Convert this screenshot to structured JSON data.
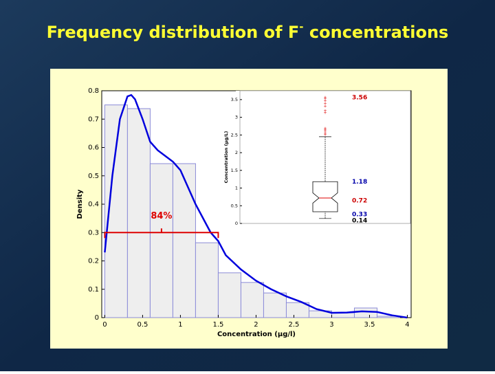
{
  "title": {
    "main": "Frequency distribution of F",
    "sup": "-",
    "rest": "concentrations"
  },
  "chart_data": [
    {
      "type": "histogram",
      "xlabel": "Concentration (µg/l)",
      "ylabel": "Density",
      "bins": [
        0,
        0.3,
        0.6,
        0.9,
        1.2,
        1.5,
        1.8,
        2.1,
        2.4,
        2.7,
        3.0,
        3.3,
        3.6,
        3.9
      ],
      "values": [
        0.75,
        0.737,
        0.543,
        0.543,
        0.264,
        0.158,
        0.124,
        0.087,
        0.053,
        0.024,
        0.017,
        0.034,
        0.005
      ],
      "color": "#eeeeee",
      "edge_color": "#8a8ad8",
      "density": {
        "color": "#0000dd",
        "x": [
          0,
          0.1,
          0.2,
          0.3,
          0.35,
          0.4,
          0.5,
          0.6,
          0.7,
          0.8,
          0.9,
          1.0,
          1.1,
          1.2,
          1.3,
          1.4,
          1.5,
          1.6,
          1.8,
          2.0,
          2.2,
          2.4,
          2.6,
          2.8,
          3.0,
          3.2,
          3.4,
          3.6,
          3.8,
          4.0
        ],
        "y": [
          0.23,
          0.5,
          0.7,
          0.78,
          0.785,
          0.77,
          0.7,
          0.62,
          0.59,
          0.57,
          0.55,
          0.52,
          0.46,
          0.4,
          0.35,
          0.3,
          0.27,
          0.22,
          0.17,
          0.13,
          0.1,
          0.075,
          0.055,
          0.03,
          0.017,
          0.018,
          0.022,
          0.02,
          0.008,
          0.0
        ]
      },
      "annotation": {
        "text": "84%",
        "x0": 0,
        "x1": 1.5,
        "y": 0.3,
        "color": "#dd0000"
      },
      "xlim": [
        -0.04,
        4.05
      ],
      "ylim": [
        0,
        0.8
      ],
      "xticks": [
        0,
        0.5,
        1,
        1.5,
        2,
        2.5,
        3,
        3.5,
        4
      ],
      "yticks": [
        0,
        0.1,
        0.2,
        0.3,
        0.4,
        0.5,
        0.6,
        0.7,
        0.8
      ]
    },
    {
      "type": "box",
      "ylabel": "Concentration (µg/L)",
      "whisker_low": 0.14,
      "q1": 0.33,
      "median": 0.72,
      "q3": 1.18,
      "whisker_high": 2.45,
      "max": 3.56,
      "outliers": [
        2.5,
        2.55,
        2.6,
        2.64,
        2.68,
        3.12,
        3.18,
        3.3,
        3.38,
        3.46,
        3.52
      ],
      "box_color": "#000000",
      "median_color": "#dd0000",
      "outlier_color": "#dd0000",
      "label_colors": {
        "max": "#cc0000",
        "q3": "#0000aa",
        "median": "#cc0000",
        "q1": "#0000aa",
        "whisker_low": "#000000"
      },
      "ylim": [
        0,
        3.75
      ],
      "yticks": [
        0,
        0.5,
        1,
        1.5,
        2,
        2.5,
        3,
        3.5
      ]
    }
  ]
}
